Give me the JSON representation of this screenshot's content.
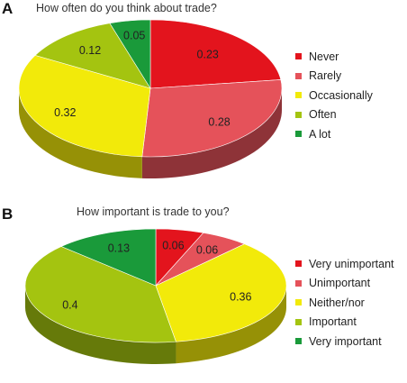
{
  "chart_data": [
    {
      "panel": "A",
      "type": "pie",
      "title": "How often do you think about trade?",
      "categories": [
        "Never",
        "Rarely",
        "Occasionally",
        "Often",
        "A lot"
      ],
      "values": [
        0.23,
        0.28,
        0.32,
        0.12,
        0.05
      ],
      "value_labels": [
        "0.23",
        "0.28",
        "0.32",
        "0.12",
        "0.05"
      ],
      "colors": [
        "#e3141d",
        "#e5525a",
        "#f2ea0a",
        "#a4c410",
        "#1a9a3a"
      ],
      "legend_position": "right"
    },
    {
      "panel": "B",
      "type": "pie",
      "title": "How important is trade to you?",
      "categories": [
        "Very unimportant",
        "Unimportant",
        "Neither/nor",
        "Important",
        "Very important"
      ],
      "values": [
        0.06,
        0.06,
        0.36,
        0.4,
        0.13
      ],
      "value_labels": [
        "0.06",
        "0.06",
        "0.36",
        "0.4",
        "0.13"
      ],
      "colors": [
        "#e3141d",
        "#e5525a",
        "#f2ea0a",
        "#a4c410",
        "#1a9a3a"
      ],
      "legend_position": "right"
    }
  ]
}
